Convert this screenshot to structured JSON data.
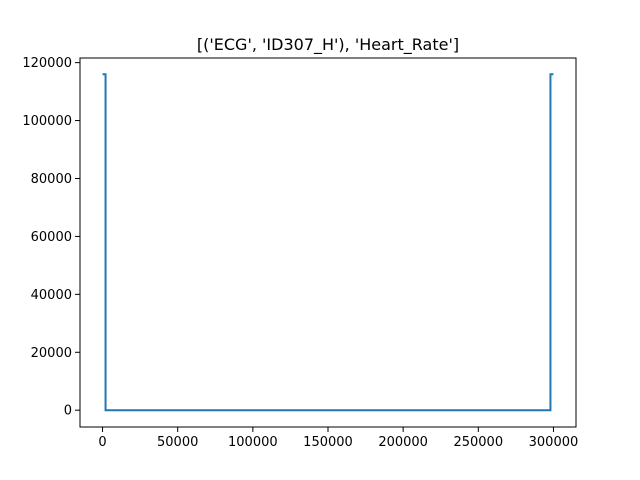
{
  "chart_data": {
    "type": "line",
    "title": "[('ECG', 'ID307_H'), 'Heart_Rate']",
    "xlabel": "",
    "ylabel": "",
    "xlim": [
      -15000,
      315000
    ],
    "ylim": [
      -5800,
      121600
    ],
    "xticks": [
      0,
      50000,
      100000,
      150000,
      200000,
      250000,
      300000
    ],
    "xtick_labels": [
      "0",
      "50000",
      "100000",
      "150000",
      "200000",
      "250000",
      "300000"
    ],
    "yticks": [
      0,
      20000,
      40000,
      60000,
      80000,
      100000,
      120000
    ],
    "ytick_labels": [
      "0",
      "20000",
      "40000",
      "60000",
      "80000",
      "100000",
      "120000"
    ],
    "grid": false,
    "series": [
      {
        "color": "#1f77b4",
        "x": [
          0,
          2000,
          2000,
          298000,
          298000,
          300000
        ],
        "y": [
          116000,
          116000,
          0,
          0,
          116000,
          116000
        ]
      }
    ]
  }
}
